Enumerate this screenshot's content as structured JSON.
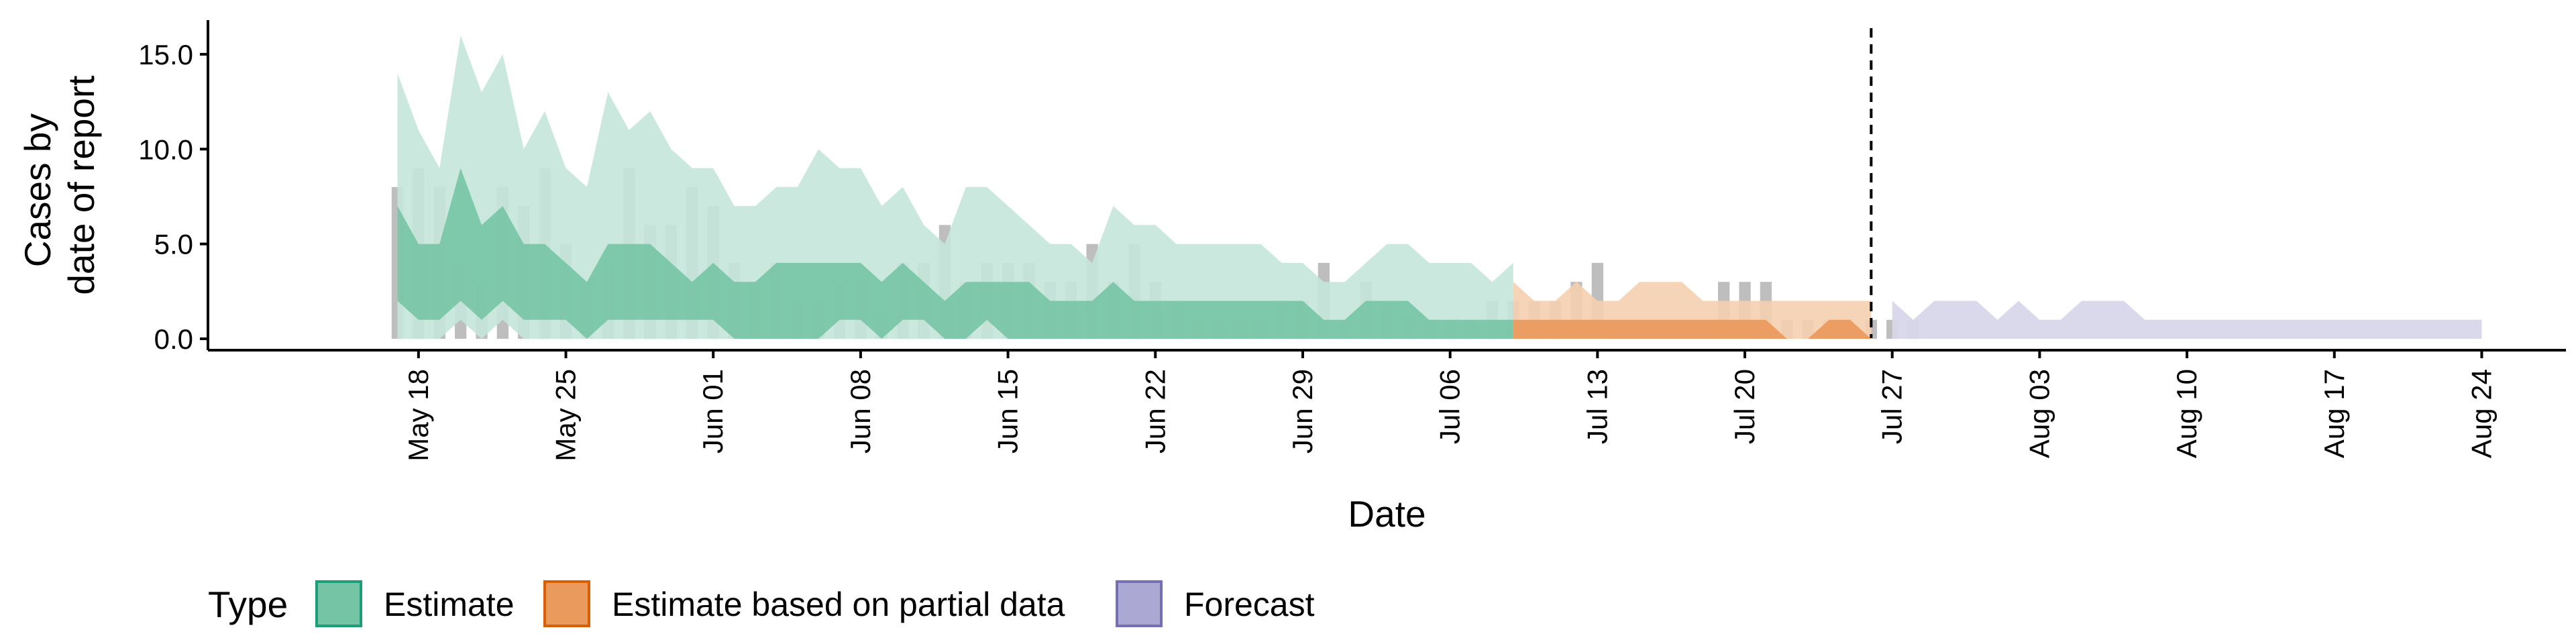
{
  "chart_data": {
    "type": "area",
    "xlabel": "Date",
    "ylabel_lines": [
      "Cases by",
      "date of report"
    ],
    "x_range": [
      "2024-05-08",
      "2024-08-28"
    ],
    "ylim": [
      -0.6,
      16.8
    ],
    "y_ticks": [
      0,
      5,
      10,
      15
    ],
    "y_tick_labels": [
      "0.0",
      "5.0",
      "10.0",
      "15.0"
    ],
    "x_ticks": [
      "2024-05-18",
      "2024-05-25",
      "2024-06-01",
      "2024-06-08",
      "2024-06-15",
      "2024-06-22",
      "2024-06-29",
      "2024-07-06",
      "2024-07-13",
      "2024-07-20",
      "2024-07-27",
      "2024-08-03",
      "2024-08-10",
      "2024-08-17",
      "2024-08-24"
    ],
    "x_tick_labels": [
      "May 18",
      "May 25",
      "Jun 01",
      "Jun 08",
      "Jun 15",
      "Jun 22",
      "Jun 29",
      "Jul 06",
      "Jul 13",
      "Jul 20",
      "Jul 27",
      "Aug 03",
      "Aug 10",
      "Aug 17",
      "Aug 24"
    ],
    "forecast_line_date": "2024-07-26",
    "grid": false,
    "legend": {
      "title": "Type",
      "position": "bottom-left",
      "entries": [
        {
          "label": "Estimate",
          "fill": "#75c4a5",
          "stroke": "#1b9e77"
        },
        {
          "label": "Estimate based on partial data",
          "fill": "#eb9a5e",
          "stroke": "#d95f02"
        },
        {
          "label": "Forecast",
          "fill": "#aca8d4",
          "stroke": "#7570b3"
        }
      ]
    },
    "colors": {
      "estimate_outer": "#c5e6da",
      "estimate_inner": "#75c4a5",
      "partial_outer": "#f4cfb0",
      "partial_inner": "#eb9a5e",
      "forecast": "#d8d6ea",
      "bars": "#b3b3b3"
    },
    "reported_cases": {
      "start_date": "2024-05-17",
      "values": [
        8,
        9,
        8,
        4,
        3,
        8,
        7,
        9,
        5,
        3,
        4,
        9,
        6,
        6,
        8,
        7,
        4,
        3,
        4,
        2,
        2,
        3,
        3,
        1,
        4,
        4,
        6,
        3,
        4,
        4,
        4,
        3,
        3,
        5,
        3,
        5,
        3,
        2,
        1,
        1,
        1,
        1,
        2,
        2,
        4,
        1,
        3,
        2,
        1,
        1,
        1,
        1,
        2,
        2,
        2,
        2,
        3,
        4,
        0,
        0,
        0,
        0,
        0,
        3,
        3,
        3,
        1,
        1,
        1,
        0,
        1,
        1,
        1
      ]
    },
    "estimate": {
      "start_date": "2024-05-17",
      "lower90": [
        0,
        0,
        0,
        1,
        0,
        1,
        0,
        0,
        0,
        0,
        0,
        0,
        0,
        0,
        0,
        0,
        0,
        0,
        0,
        0,
        0,
        0,
        0,
        0,
        0,
        0,
        0,
        0,
        0,
        0,
        0,
        0,
        0,
        0,
        0,
        0,
        0,
        0,
        0,
        0,
        0,
        0,
        0,
        0,
        0,
        0,
        0,
        0,
        0,
        0,
        0,
        0,
        0,
        0
      ],
      "upper90": [
        14,
        11,
        9,
        16,
        13,
        15,
        10,
        12,
        9,
        8,
        13,
        11,
        12,
        10,
        9,
        9,
        7,
        7,
        8,
        8,
        10,
        9,
        9,
        7,
        8,
        6,
        5,
        8,
        8,
        7,
        6,
        5,
        5,
        4,
        7,
        6,
        6,
        5,
        5,
        5,
        5,
        5,
        4,
        4,
        3,
        3,
        4,
        5,
        5,
        4,
        4,
        4,
        3,
        4
      ],
      "lower50": [
        2,
        1,
        1,
        2,
        1,
        2,
        1,
        1,
        1,
        0,
        1,
        1,
        1,
        1,
        1,
        1,
        0,
        0,
        0,
        0,
        0,
        1,
        1,
        0,
        1,
        1,
        0,
        0,
        1,
        0,
        0,
        0,
        0,
        0,
        0,
        0,
        0,
        0,
        0,
        0,
        0,
        0,
        0,
        0,
        0,
        0,
        0,
        0,
        0,
        0,
        0,
        0,
        0,
        0
      ],
      "upper50": [
        7,
        5,
        5,
        9,
        6,
        7,
        5,
        5,
        4,
        3,
        5,
        5,
        5,
        4,
        3,
        4,
        3,
        3,
        4,
        4,
        4,
        4,
        4,
        3,
        4,
        3,
        2,
        3,
        3,
        3,
        3,
        2,
        2,
        2,
        3,
        2,
        2,
        2,
        2,
        2,
        2,
        2,
        2,
        2,
        1,
        1,
        2,
        2,
        2,
        1,
        1,
        1,
        1,
        1
      ]
    },
    "partial": {
      "start_date": "2024-07-09",
      "upper90": [
        3,
        2,
        2,
        3,
        2,
        2,
        3,
        3,
        3,
        2,
        2,
        2,
        2,
        2,
        2,
        2,
        2,
        2
      ],
      "upper50": [
        1,
        1,
        1,
        1,
        1,
        1,
        1,
        1,
        1,
        1,
        1,
        1,
        1,
        0,
        0,
        1,
        1,
        0
      ],
      "lower": [
        0,
        0,
        0,
        0,
        0,
        0,
        0,
        0,
        0,
        0,
        0,
        0,
        0,
        0,
        0,
        0,
        0,
        0
      ]
    },
    "forecast": {
      "start_date": "2024-07-27",
      "upper": [
        2,
        1,
        2,
        2,
        2,
        1,
        2,
        1,
        1,
        2,
        2,
        2,
        1,
        1,
        1,
        1,
        1,
        1,
        1,
        1,
        1,
        1,
        1,
        1,
        1,
        1,
        1,
        1,
        1
      ],
      "lower": [
        0,
        0,
        0,
        0,
        0,
        0,
        0,
        0,
        0,
        0,
        0,
        0,
        0,
        0,
        0,
        0,
        0,
        0,
        0,
        0,
        0,
        0,
        0,
        0,
        0,
        0,
        0,
        0,
        0
      ]
    }
  }
}
